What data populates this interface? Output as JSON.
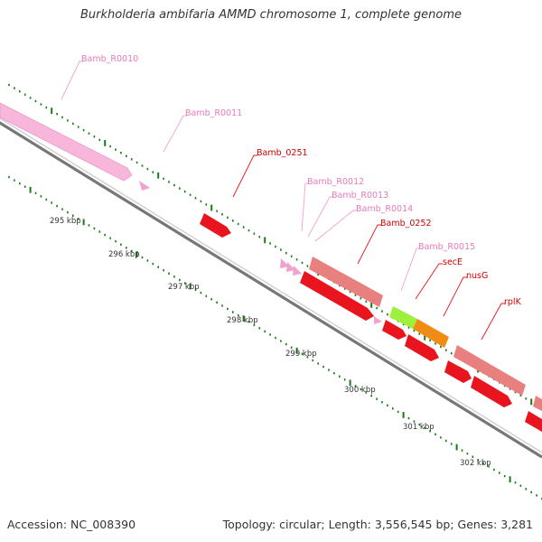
{
  "title": "Burkholderia ambifaria AMMD chromosome 1, complete genome",
  "footer": {
    "accession": "Accession: NC_008390",
    "summary": "Topology: circular; Length: 3,556,545 bp; Genes: 3,281"
  },
  "colors": {
    "tick": "#1a7a1a",
    "backbone": "#777777",
    "pink": "#f2a2cf",
    "pink_light": "#f7b6da",
    "red": "#e8141e",
    "salmon": "#e88080",
    "lime": "#9ef03c",
    "orange": "#f08c14",
    "label_pink": "#e87ab8",
    "label_red": "#cc0000"
  },
  "scale": {
    "ticks": [
      {
        "label": "295 kbp"
      },
      {
        "label": "296 kbp"
      },
      {
        "label": "297 kbp"
      },
      {
        "label": "298 kbp"
      },
      {
        "label": "299 kbp"
      },
      {
        "label": "300 kbp"
      },
      {
        "label": "301 kbp"
      },
      {
        "label": "302 kbp"
      }
    ]
  },
  "features": [
    {
      "name": "Bamb_R0010",
      "type": "rRNA"
    },
    {
      "name": "Bamb_R0011",
      "type": "tRNA"
    },
    {
      "name": "Bamb_0251",
      "type": "gene"
    },
    {
      "name": "Bamb_R0012",
      "type": "tRNA"
    },
    {
      "name": "Bamb_R0013",
      "type": "tRNA"
    },
    {
      "name": "Bamb_R0014",
      "type": "tRNA"
    },
    {
      "name": "Bamb_0252",
      "type": "gene"
    },
    {
      "name": "Bamb_R0015",
      "type": "tRNA"
    },
    {
      "name": "secE",
      "type": "gene"
    },
    {
      "name": "nusG",
      "type": "gene"
    },
    {
      "name": "rplK",
      "type": "gene"
    }
  ]
}
